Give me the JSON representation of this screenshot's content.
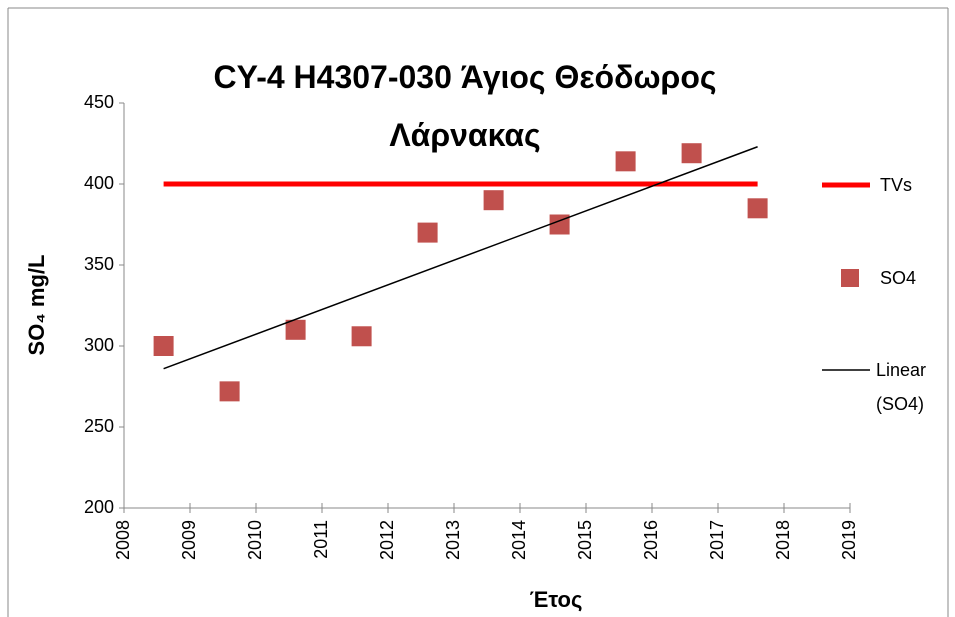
{
  "chart_data": {
    "type": "scatter",
    "title": "CY-4 H4307-030 Άγιος Θεόδωρος Λάρνακας",
    "x_label": "Έτος",
    "y_label": "SO₄ mg/L",
    "xlim": [
      2008,
      2019
    ],
    "xticks": [
      2008,
      2009,
      2010,
      2011,
      2012,
      2013,
      2014,
      2015,
      2016,
      2017,
      2018,
      2019
    ],
    "ylim": [
      200,
      450
    ],
    "yticks": [
      200,
      250,
      300,
      350,
      400,
      450
    ],
    "grid": false,
    "legend": "right",
    "series": [
      {
        "name": "TVs",
        "color": "#ff0000",
        "kind": "line",
        "x": [
          2008.6,
          2017.6
        ],
        "values": [
          400,
          400
        ]
      },
      {
        "name": "SO4",
        "color": "#c0504d",
        "kind": "marker",
        "x": [
          2008.6,
          2009.6,
          2010.6,
          2011.6,
          2012.6,
          2013.6,
          2014.6,
          2015.6,
          2016.6,
          2017.6
        ],
        "values": [
          300,
          272,
          310,
          306,
          370,
          390,
          375,
          414,
          419,
          385
        ]
      },
      {
        "name": "Linear (SO4)",
        "color": "#000000",
        "kind": "line",
        "x": [
          2008.6,
          2017.6
        ],
        "values": [
          286,
          423
        ]
      }
    ]
  }
}
